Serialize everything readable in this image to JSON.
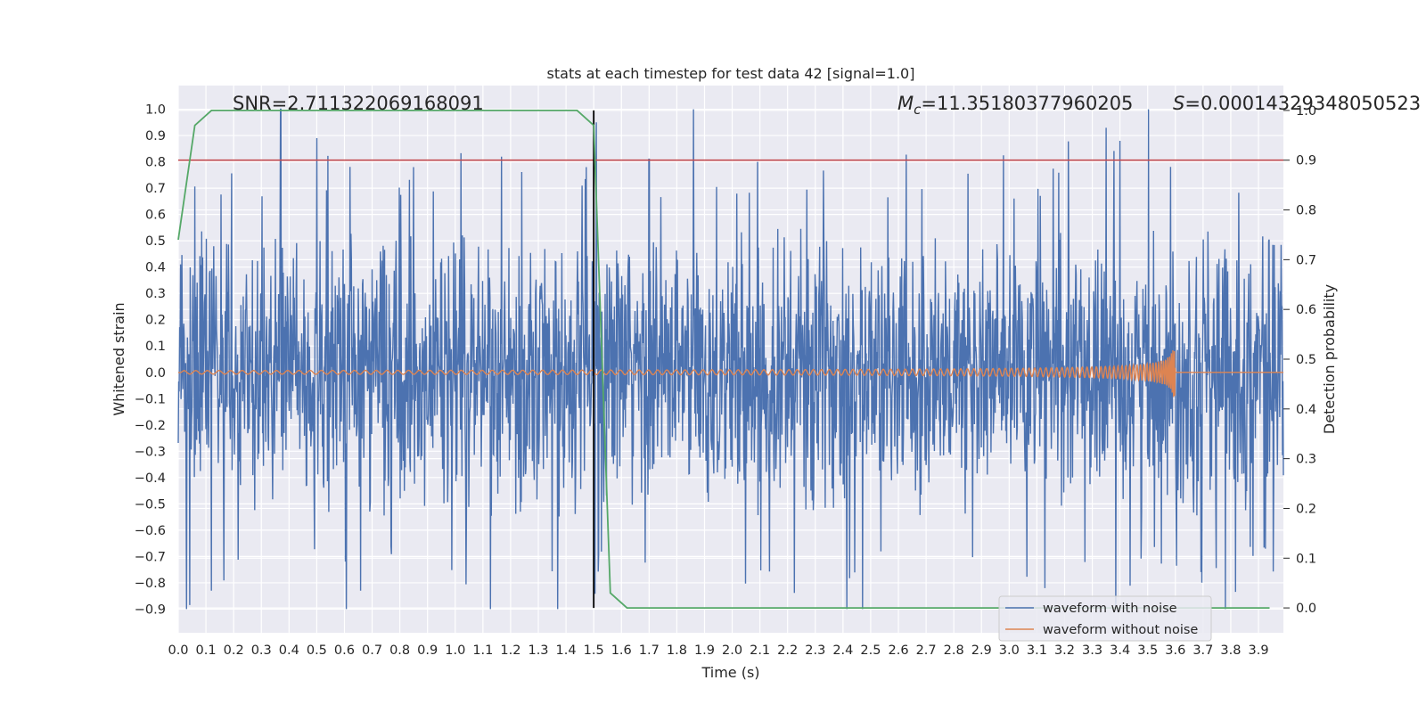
{
  "chart_data": {
    "type": "line",
    "title": "stats at each timestep for test data 42 [signal=1.0]",
    "xlabel": "Time (s)",
    "ylabel": "Whitened strain",
    "y2label": "Detection probability",
    "xlim": [
      0.0,
      3.99
    ],
    "ylim": [
      -0.99,
      1.09
    ],
    "y2lim": [
      -0.05,
      1.05
    ],
    "xticks": [
      "0.0",
      "0.1",
      "0.2",
      "0.3",
      "0.4",
      "0.5",
      "0.6",
      "0.7",
      "0.8",
      "0.9",
      "1.0",
      "1.1",
      "1.2",
      "1.3",
      "1.4",
      "1.5",
      "1.6",
      "1.7",
      "1.8",
      "1.9",
      "2.0",
      "2.1",
      "2.2",
      "2.3",
      "2.4",
      "2.5",
      "2.6",
      "2.7",
      "2.8",
      "2.9",
      "3.0",
      "3.1",
      "3.2",
      "3.3",
      "3.4",
      "3.5",
      "3.6",
      "3.7",
      "3.8",
      "3.9"
    ],
    "yticks": [
      "−0.9",
      "−0.8",
      "−0.7",
      "−0.6",
      "−0.5",
      "−0.4",
      "−0.3",
      "−0.2",
      "−0.1",
      "0.0",
      "0.1",
      "0.2",
      "0.3",
      "0.4",
      "0.5",
      "0.6",
      "0.7",
      "0.8",
      "0.9",
      "1.0"
    ],
    "y2ticks": [
      "0.0",
      "0.1",
      "0.2",
      "0.3",
      "0.4",
      "0.5",
      "0.6",
      "0.7",
      "0.8",
      "0.9",
      "1.0"
    ],
    "grid": true,
    "legend_position": "lower right",
    "annotations": {
      "snr": "SNR=2.711322069168091",
      "mc_prefix": "M",
      "mc_sub": "c",
      "mc_value": "=11.35180377960205",
      "s_prefix": "S",
      "s_value": "=0.00014329348050523",
      "mc_sub_hint": "subscript c of M"
    },
    "series": [
      {
        "name": "waveform with noise",
        "color": "#4c72b0",
        "axis": "left",
        "description_peaks": [
          {
            "x": 0.37,
            "y": 1.0
          },
          {
            "x": 0.5,
            "y": 0.89
          },
          {
            "x": 0.85,
            "y": 0.78
          },
          {
            "x": 1.51,
            "y": 0.95
          },
          {
            "x": 1.7,
            "y": 0.81
          },
          {
            "x": 3.4,
            "y": 0.88
          },
          {
            "x": 2.47,
            "y": -0.9
          },
          {
            "x": 3.78,
            "y": -0.9
          },
          {
            "x": 0.12,
            "y": -0.83
          }
        ],
        "amplitude_range": [
          -0.9,
          1.0
        ]
      },
      {
        "name": "waveform without noise",
        "color": "#dd8452",
        "axis": "left",
        "chirp_start": 0.0,
        "chirp_merger": 3.6,
        "peak_amplitude": 0.1,
        "baseline": 0.0
      },
      {
        "name": "detection probability",
        "color": "#55a868",
        "axis": "right",
        "x": [
          0.0,
          0.06,
          0.12,
          0.25,
          0.5,
          0.75,
          1.0,
          1.25,
          1.44,
          1.5,
          1.56,
          1.62,
          1.75,
          2.0,
          2.5,
          3.0,
          3.5,
          3.94
        ],
        "y": [
          0.74,
          0.97,
          1.0,
          1.0,
          1.0,
          1.0,
          1.0,
          1.0,
          1.0,
          0.97,
          0.03,
          0.0,
          0.0,
          0.0,
          0.0,
          0.0,
          0.0,
          0.0
        ]
      }
    ],
    "threshold_line": {
      "axis": "right",
      "y": 0.9,
      "color": "#c44e52"
    },
    "vertical_marker": {
      "x": 1.5,
      "y2_from": 0.0,
      "y2_to": 1.0,
      "color": "#000000"
    }
  }
}
